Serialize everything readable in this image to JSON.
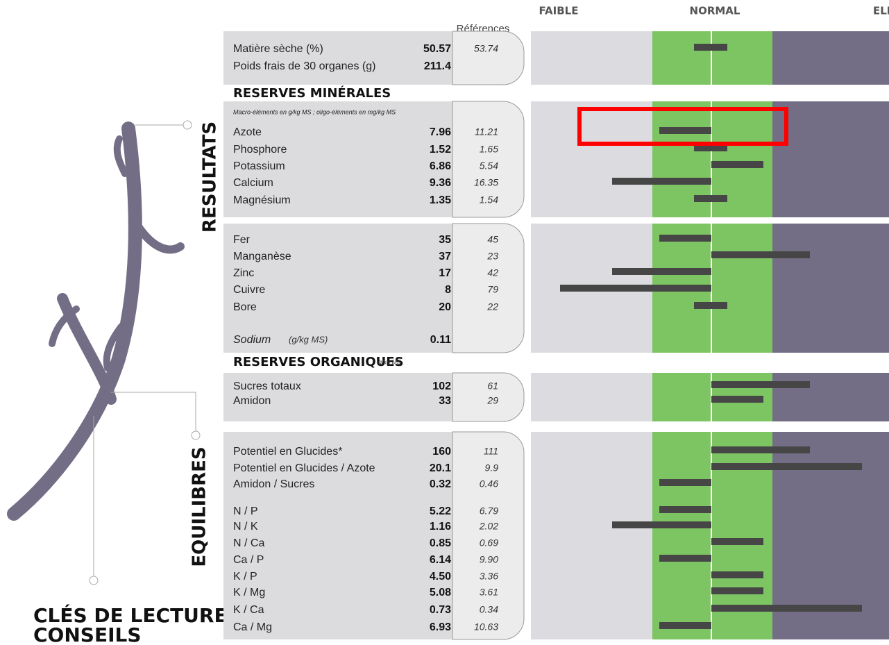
{
  "header": {
    "references": "Références",
    "scale": [
      "FAIBLE",
      "NORMAL",
      "ELEVE"
    ]
  },
  "side": {
    "resultats": "RESULTATS",
    "equilibres": "EQUILIBRES",
    "cles": "CLÉS DE LECTURE",
    "conseils": "CONSEILS"
  },
  "sections": [
    {
      "rows": [
        {
          "label": "Matière sèche (%)",
          "value": "50.57",
          "ref": "53.74",
          "level": 0
        },
        {
          "label": "Poids frais de 30 organes (g)",
          "value": "211.4"
        }
      ]
    },
    {
      "title": "RESERVES MINÉRALES",
      "note": "Macro-éléments en g/kg MS ; oligo-éléments en mg/kg MS",
      "rows": [
        {
          "label": "Azote",
          "value": "7.96",
          "ref": "11.21",
          "level": -1
        },
        {
          "label": "Phosphore",
          "value": "1.52",
          "ref": "1.65",
          "level": 0
        },
        {
          "label": "Potassium",
          "value": "6.86",
          "ref": "5.54",
          "level": 1
        },
        {
          "label": "Calcium",
          "value": "9.36",
          "ref": "16.35",
          "level": -2
        },
        {
          "label": "Magnésium",
          "value": "1.35",
          "ref": "1.54",
          "level": 0
        }
      ]
    },
    {
      "rows": [
        {
          "label": "Fer",
          "value": "35",
          "ref": "45",
          "level": -1
        },
        {
          "label": "Manganèse",
          "value": "37",
          "ref": "23",
          "level": 2
        },
        {
          "label": "Zinc",
          "value": "17",
          "ref": "42",
          "level": -2
        },
        {
          "label": "Cuivre",
          "value": "8",
          "ref": "79",
          "level": -3
        },
        {
          "label": "Bore",
          "value": "20",
          "ref": "22",
          "level": 0
        },
        {
          "label": "Sodium",
          "unit": "(g/kg MS)",
          "value": "0.11"
        }
      ]
    },
    {
      "title": "RESERVES ORGANIQUES",
      "note": "g/kg MS",
      "rows": [
        {
          "label": "Sucres totaux",
          "value": "102",
          "ref": "61",
          "level": 2
        },
        {
          "label": "Amidon",
          "value": "33",
          "ref": "29",
          "level": 1
        }
      ]
    },
    {
      "rows": [
        {
          "label": "Potentiel en Glucides*",
          "value": "160",
          "ref": "111",
          "level": 2
        },
        {
          "label": "Potentiel en Glucides / Azote",
          "value": "20.1",
          "ref": "9.9",
          "level": 3
        },
        {
          "label": "Amidon / Sucres",
          "value": "0.32",
          "ref": "0.46",
          "level": -1
        },
        {
          "label": "N / P",
          "value": "5.22",
          "ref": "6.79",
          "level": -1
        },
        {
          "label": "N / K",
          "value": "1.16",
          "ref": "2.02",
          "level": -2
        },
        {
          "label": "N / Ca",
          "value": "0.85",
          "ref": "0.69",
          "level": 1
        },
        {
          "label": "Ca / P",
          "value": "6.14",
          "ref": "9.90",
          "level": -1
        },
        {
          "label": "K / P",
          "value": "4.50",
          "ref": "3.36",
          "level": 1
        },
        {
          "label": "K / Mg",
          "value": "5.08",
          "ref": "3.61",
          "level": 1
        },
        {
          "label": "K / Ca",
          "value": "0.73",
          "ref": "0.34",
          "level": 3
        },
        {
          "label": "Ca / Mg",
          "value": "6.93",
          "ref": "10.63",
          "level": -1
        }
      ]
    }
  ]
}
